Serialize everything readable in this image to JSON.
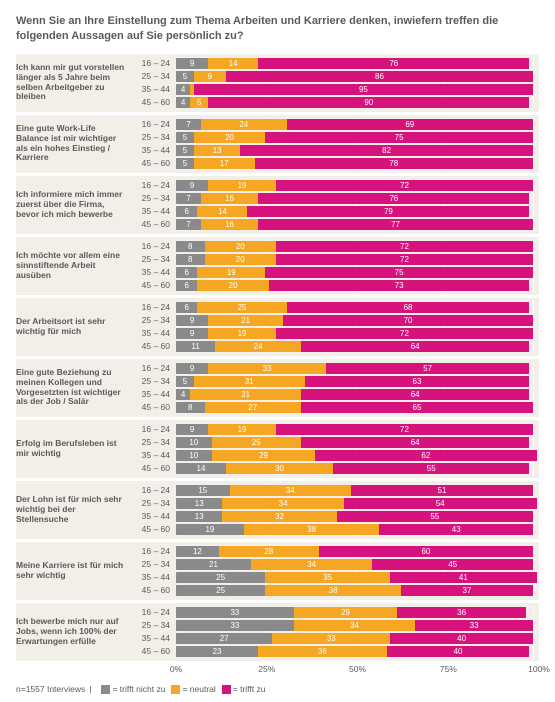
{
  "title": "Wenn Sie an Ihre Einstellung zum Thema Arbeiten und Karriere denken, inwiefern treffen die folgenden Aussagen auf Sie persönlich zu?",
  "colors": {
    "disagree": "#8a8a8a",
    "neutral": "#f5a623",
    "agree": "#d6137d",
    "group_bg": "#f2efe9",
    "text": "#5a5a5a",
    "gridline": "#ffffff"
  },
  "age_labels": [
    "16 – 24",
    "25 – 34",
    "35 – 44",
    "45 – 60"
  ],
  "axis_ticks": [
    0,
    25,
    50,
    75,
    100
  ],
  "axis_labels": [
    "0%",
    "25%",
    "50%",
    "75%",
    "100%"
  ],
  "legend": {
    "n": "n=1557 Interviews",
    "items": [
      {
        "label": "trifft nicht zu",
        "color": "#8a8a8a"
      },
      {
        "label": "neutral",
        "color": "#f5a623"
      },
      {
        "label": "trifft zu",
        "color": "#d6137d"
      }
    ]
  },
  "fontsize": {
    "title": 11,
    "label": 8.5,
    "value": 8
  },
  "groups": [
    {
      "statement": "Ich kann mir gut vorstellen länger als 5 Jahre beim selben Arbeitgeber zu bleiben",
      "rows": [
        {
          "d": 9,
          "n": 14,
          "a": 76
        },
        {
          "d": 5,
          "n": 9,
          "a": 86
        },
        {
          "d": 4,
          "n": 1,
          "a": 95
        },
        {
          "d": 4,
          "n": 5,
          "a": 90
        }
      ]
    },
    {
      "statement": "Eine gute Work-Life Balance ist mir wichtiger als ein hohes Einstieg / Karriere",
      "rows": [
        {
          "d": 7,
          "n": 24,
          "a": 69
        },
        {
          "d": 5,
          "n": 20,
          "a": 75
        },
        {
          "d": 5,
          "n": 13,
          "a": 82
        },
        {
          "d": 5,
          "n": 17,
          "a": 78
        }
      ]
    },
    {
      "statement": "Ich informiere mich immer zuerst über die Firma, bevor ich mich bewerbe",
      "rows": [
        {
          "d": 9,
          "n": 19,
          "a": 72
        },
        {
          "d": 7,
          "n": 16,
          "a": 76
        },
        {
          "d": 6,
          "n": 14,
          "a": 79
        },
        {
          "d": 7,
          "n": 16,
          "a": 77
        }
      ]
    },
    {
      "statement": "Ich möchte vor allem eine sinnstiftende Arbeit ausüben",
      "rows": [
        {
          "d": 8,
          "n": 20,
          "a": 72
        },
        {
          "d": 8,
          "n": 20,
          "a": 72
        },
        {
          "d": 6,
          "n": 19,
          "a": 75
        },
        {
          "d": 6,
          "n": 20,
          "a": 73
        }
      ]
    },
    {
      "statement": "Der Arbeitsort ist sehr wichtig für mich",
      "rows": [
        {
          "d": 6,
          "n": 25,
          "a": 68
        },
        {
          "d": 9,
          "n": 21,
          "a": 70
        },
        {
          "d": 9,
          "n": 19,
          "a": 72
        },
        {
          "d": 11,
          "n": 24,
          "a": 64
        }
      ]
    },
    {
      "statement": "Eine gute Beziehung zu meinen Kollegen und Vorgesetzten ist wichtiger als der Job / Salär",
      "rows": [
        {
          "d": 9,
          "n": 33,
          "a": 57
        },
        {
          "d": 5,
          "n": 31,
          "a": 63
        },
        {
          "d": 4,
          "n": 31,
          "a": 64
        },
        {
          "d": 8,
          "n": 27,
          "a": 65
        }
      ]
    },
    {
      "statement": "Erfolg im Berufsleben ist mir wichtig",
      "rows": [
        {
          "d": 9,
          "n": 19,
          "a": 72
        },
        {
          "d": 10,
          "n": 25,
          "a": 64
        },
        {
          "d": 10,
          "n": 29,
          "a": 62
        },
        {
          "d": 14,
          "n": 30,
          "a": 55
        }
      ]
    },
    {
      "statement": "Der Lohn ist für mich sehr wichtig bei der Stellensuche",
      "rows": [
        {
          "d": 15,
          "n": 34,
          "a": 51
        },
        {
          "d": 13,
          "n": 34,
          "a": 54
        },
        {
          "d": 13,
          "n": 32,
          "a": 55
        },
        {
          "d": 19,
          "n": 38,
          "a": 43
        }
      ]
    },
    {
      "statement": "Meine Karriere ist für mich sehr wichtig",
      "rows": [
        {
          "d": 12,
          "n": 28,
          "a": 60
        },
        {
          "d": 21,
          "n": 34,
          "a": 45
        },
        {
          "d": 25,
          "n": 35,
          "a": 41
        },
        {
          "d": 25,
          "n": 38,
          "a": 37
        }
      ]
    },
    {
      "statement": "Ich bewerbe mich nur auf Jobs, wenn ich 100% der Erwartungen erfülle",
      "rows": [
        {
          "d": 33,
          "n": 29,
          "a": 36
        },
        {
          "d": 33,
          "n": 34,
          "a": 33
        },
        {
          "d": 27,
          "n": 33,
          "a": 40
        },
        {
          "d": 23,
          "n": 36,
          "a": 40
        }
      ]
    }
  ]
}
